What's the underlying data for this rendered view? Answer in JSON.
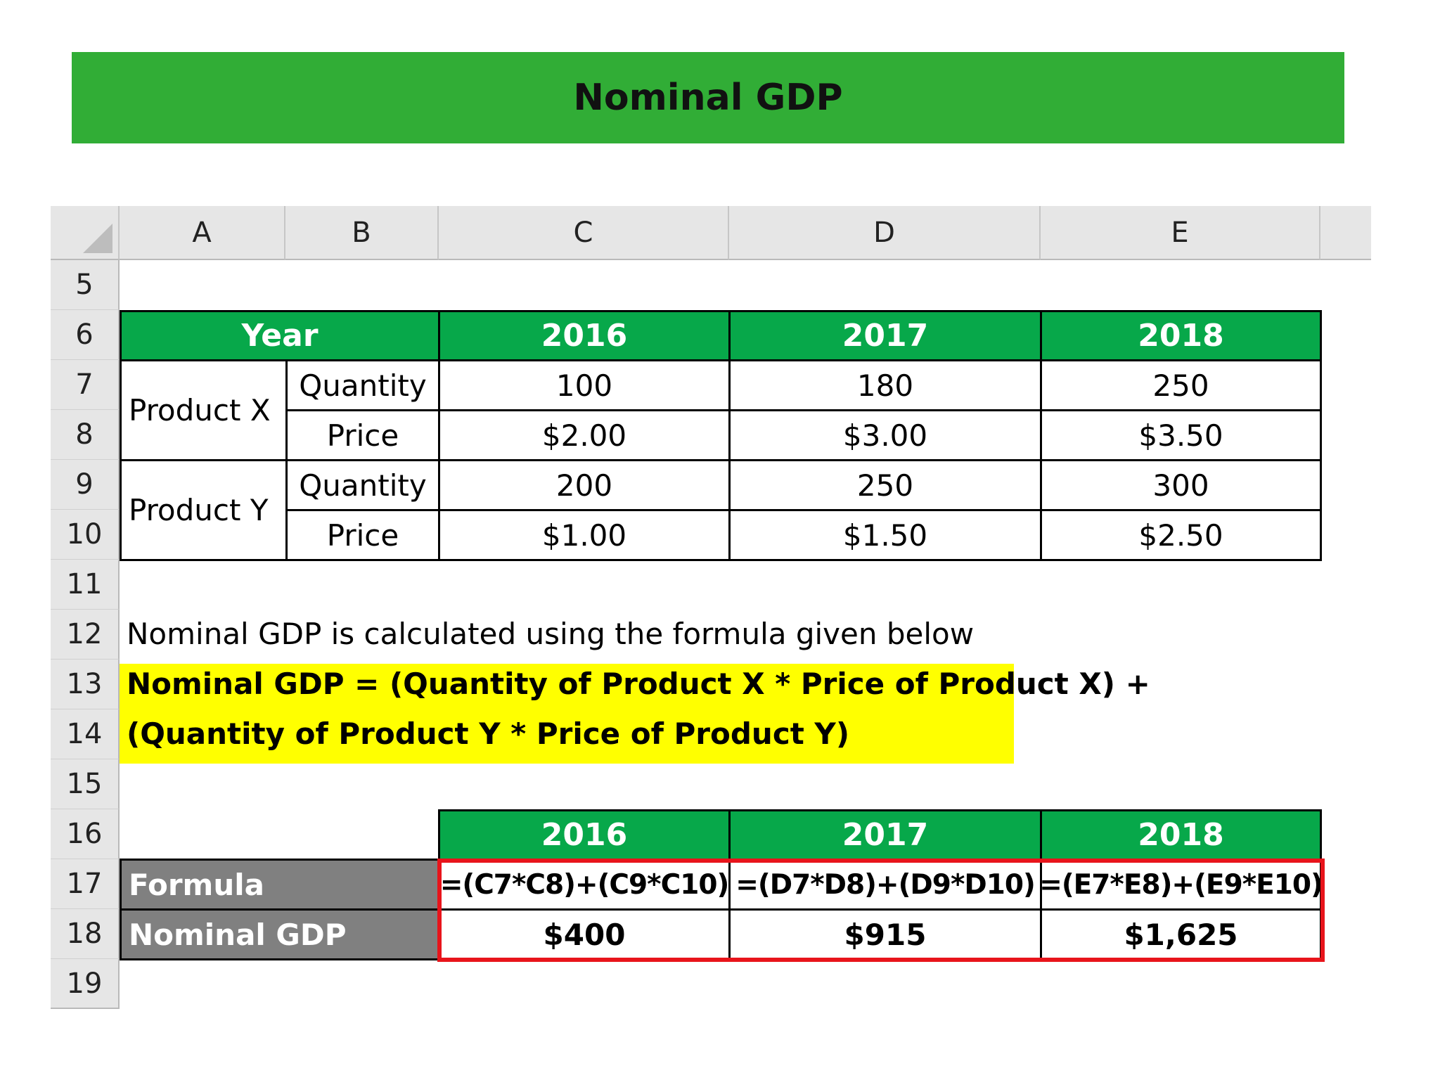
{
  "title": "Nominal GDP",
  "columns": [
    "A",
    "B",
    "C",
    "D",
    "E"
  ],
  "rows": [
    "5",
    "6",
    "7",
    "8",
    "9",
    "10",
    "11",
    "12",
    "13",
    "14",
    "15",
    "16",
    "17",
    "18",
    "19"
  ],
  "table1": {
    "header": {
      "label": "Year",
      "years": [
        "2016",
        "2017",
        "2018"
      ]
    },
    "products": [
      {
        "name": "Product X",
        "rows": [
          {
            "label": "Quantity",
            "values": [
              "100",
              "180",
              "250"
            ]
          },
          {
            "label": "Price",
            "values": [
              "$2.00",
              "$3.00",
              "$3.50"
            ]
          }
        ]
      },
      {
        "name": "Product Y",
        "rows": [
          {
            "label": "Quantity",
            "values": [
              "200",
              "250",
              "300"
            ]
          },
          {
            "label": "Price",
            "values": [
              "$1.00",
              "$1.50",
              "$2.50"
            ]
          }
        ]
      }
    ]
  },
  "note": "Nominal GDP is calculated using the formula given below",
  "formula": {
    "line1": "Nominal GDP = (Quantity of Product X * Price of Product X) +",
    "line2": "(Quantity of Product Y * Price of Product Y)"
  },
  "table2": {
    "years": [
      "2016",
      "2017",
      "2018"
    ],
    "formula_label": "Formula",
    "formulas": [
      "=(C7*C8)+(C9*C10)",
      "=(D7*D8)+(D9*D10)",
      "=(E7*E8)+(E9*E10)"
    ],
    "result_label": "Nominal GDP",
    "results": [
      "$400",
      "$915",
      "$1,625"
    ]
  },
  "colors": {
    "banner": "#31ad36",
    "header_green": "#07a84a",
    "label_gray": "#808080",
    "highlight": "#ffff00",
    "outline_red": "#e8141b"
  }
}
